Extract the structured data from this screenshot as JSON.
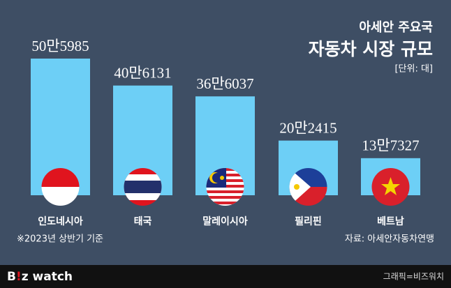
{
  "chart_data": {
    "type": "bar",
    "title": "아세안 주요국",
    "subtitle": "자동차 시장 규모",
    "unit": "[단위: 대]",
    "categories": [
      "인도네시아",
      "태국",
      "말레이시아",
      "필리핀",
      "베트남"
    ],
    "values": [
      505985,
      406131,
      366037,
      202415,
      137327
    ],
    "value_labels": [
      "50만5985",
      "40만6131",
      "36만6037",
      "20만2415",
      "13만7327"
    ],
    "color": "#6dcff6",
    "note": "※2023년 상반기 기준",
    "source": "자료: 아세안자동차연맹"
  },
  "footer": {
    "logo": [
      "B",
      "!",
      "z watch"
    ],
    "credit": "그래픽=비즈워치"
  }
}
